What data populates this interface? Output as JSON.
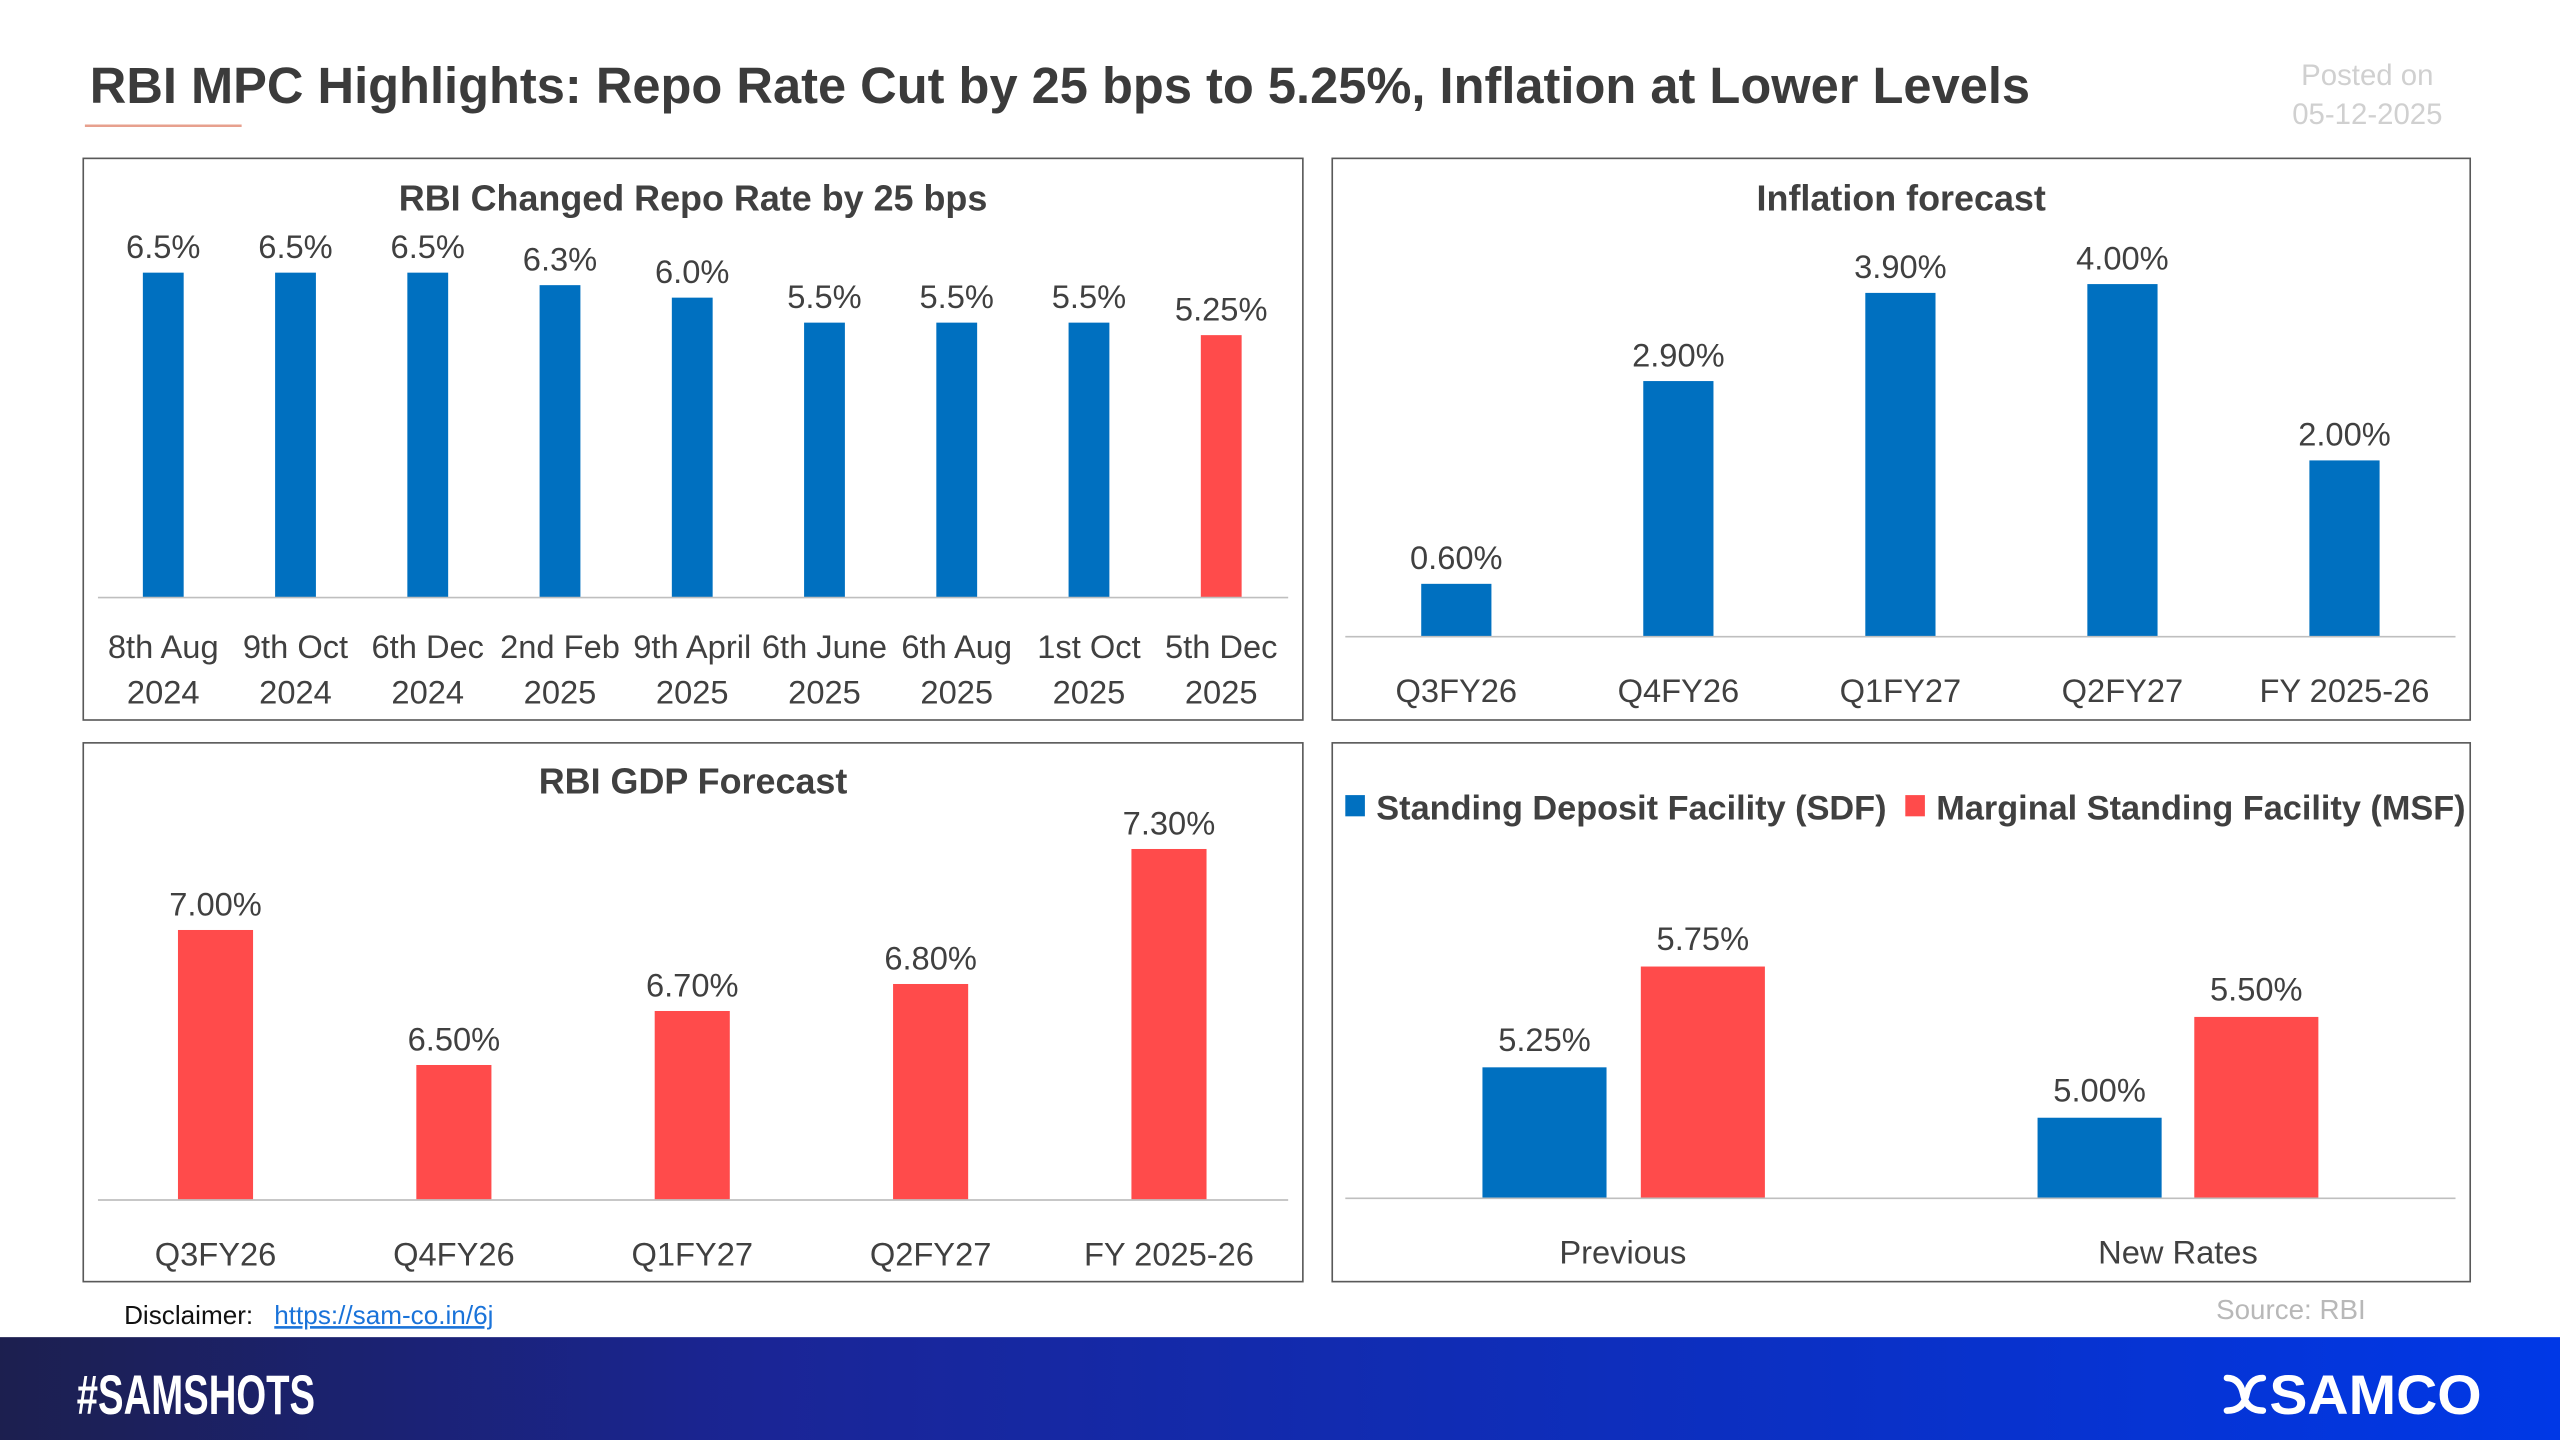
{
  "header": {
    "title": "RBI MPC Highlights: Repo Rate Cut by 25 bps to 5.25%, Inflation at Lower Levels",
    "posted_label": "Posted on",
    "posted_date": "05-12-2025"
  },
  "colors": {
    "blue": "#0070C0",
    "red": "#FF4B4B",
    "footer_start": "#1c1f4f",
    "footer_end": "#0038e6"
  },
  "chart_data": [
    {
      "type": "bar",
      "title": "RBI Changed Repo Rate by 25 bps",
      "categories": [
        "8th Aug 2024",
        "9th Oct 2024",
        "6th Dec 2024",
        "2nd Feb 2025",
        "9th April 2025",
        "6th June 2025",
        "6th Aug 2025",
        "1st Oct 2025",
        "5th Dec 2025"
      ],
      "values": [
        6.5,
        6.5,
        6.5,
        6.25,
        6.0,
        5.5,
        5.5,
        5.5,
        5.25
      ],
      "data_labels": [
        "6.5%",
        "6.5%",
        "6.5%",
        "6.3%",
        "6.0%",
        "5.5%",
        "5.5%",
        "5.5%",
        "5.25%"
      ],
      "bar_colors": [
        "blue",
        "blue",
        "blue",
        "blue",
        "blue",
        "blue",
        "blue",
        "blue",
        "red"
      ],
      "ylim": [
        0,
        7
      ],
      "grid": false
    },
    {
      "type": "bar",
      "title": "Inflation forecast",
      "categories": [
        "Q3FY26",
        "Q4FY26",
        "Q1FY27",
        "Q2FY27",
        "FY 2025-26"
      ],
      "values": [
        0.6,
        2.9,
        3.9,
        4.0,
        2.0
      ],
      "data_labels": [
        "0.60%",
        "2.90%",
        "3.90%",
        "4.00%",
        "2.00%"
      ],
      "bar_colors": [
        "blue",
        "blue",
        "blue",
        "blue",
        "blue"
      ],
      "ylim": [
        0,
        4.5
      ],
      "grid": false
    },
    {
      "type": "bar",
      "title": "RBI GDP Forecast",
      "categories": [
        "Q3FY26",
        "Q4FY26",
        "Q1FY27",
        "Q2FY27",
        "FY 2025-26"
      ],
      "values": [
        7.0,
        6.5,
        6.7,
        6.8,
        7.3
      ],
      "data_labels": [
        "7.00%",
        "6.50%",
        "6.70%",
        "6.80%",
        "7.30%"
      ],
      "bar_colors": [
        "red",
        "red",
        "red",
        "red",
        "red"
      ],
      "ylim": [
        6.0,
        7.6
      ],
      "grid": false
    },
    {
      "type": "bar",
      "title": "",
      "categories": [
        "Previous",
        "New Rates"
      ],
      "series": [
        {
          "name": "Standing Deposit Facility (SDF)",
          "values": [
            5.25,
            5.0
          ],
          "data_labels": [
            "5.25%",
            "5.00%"
          ],
          "color": "blue"
        },
        {
          "name": "Marginal Standing Facility (MSF)",
          "values": [
            5.75,
            5.5
          ],
          "data_labels": [
            "5.75%",
            "5.50%"
          ],
          "color": "red"
        }
      ],
      "ylim": [
        4.6,
        6.2
      ],
      "legend": "top",
      "grid": false
    }
  ],
  "footer": {
    "disclaimer_label": "Disclaimer:",
    "disclaimer_link": "https://sam-co.in/6j",
    "source": "Source: RBI",
    "hashtag": "#SAMSHOTS",
    "brand": "SAMCO"
  }
}
